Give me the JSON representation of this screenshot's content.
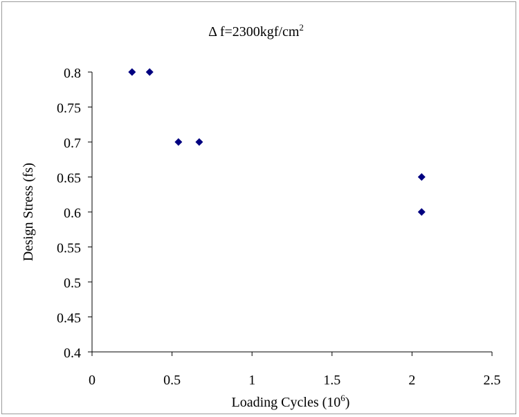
{
  "chart_data": {
    "type": "scatter",
    "title_prefix": "Δ f=2300kgf/cm",
    "title_sup": "2",
    "xlabel_prefix": "Loading Cycles (10",
    "xlabel_sup": "6",
    "xlabel_suffix": ")",
    "ylabel": "Design Stress  (fs)",
    "xlim": [
      0,
      2.5
    ],
    "ylim": [
      0.4,
      0.8
    ],
    "x_ticks": [
      0,
      0.5,
      1,
      1.5,
      2,
      2.5
    ],
    "x_tick_labels": [
      "0",
      "0.5",
      "1",
      "1.5",
      "2",
      "2.5"
    ],
    "y_ticks": [
      0.4,
      0.45,
      0.5,
      0.55,
      0.6,
      0.65,
      0.7,
      0.75,
      0.8
    ],
    "y_tick_labels": [
      "0.4",
      "0.45",
      "0.5",
      "0.55",
      "0.6",
      "0.65",
      "0.7",
      "0.75",
      "0.8"
    ],
    "grid": false,
    "legend": "none",
    "marker": "diamond",
    "marker_color": "#000080",
    "points": [
      {
        "x": 0.25,
        "y": 0.8
      },
      {
        "x": 0.36,
        "y": 0.8
      },
      {
        "x": 0.54,
        "y": 0.7
      },
      {
        "x": 0.67,
        "y": 0.7
      },
      {
        "x": 2.06,
        "y": 0.65
      },
      {
        "x": 2.06,
        "y": 0.6
      }
    ]
  }
}
